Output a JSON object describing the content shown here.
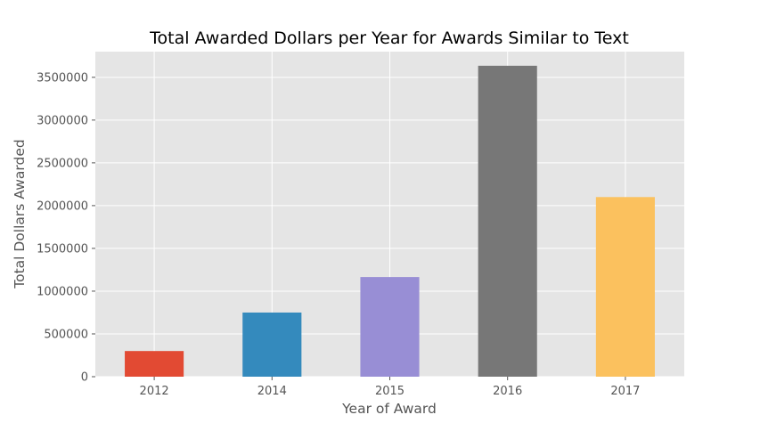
{
  "chart_data": {
    "type": "bar",
    "title": "Total Awarded Dollars per Year for Awards Similar to Text",
    "xlabel": "Year of Award",
    "ylabel": "Total Dollars Awarded",
    "categories": [
      "2012",
      "2014",
      "2015",
      "2016",
      "2017"
    ],
    "values": [
      300000,
      750000,
      1165000,
      3635000,
      2100000
    ],
    "colors": [
      "#E24A33",
      "#348ABD",
      "#988ED5",
      "#777777",
      "#FBC15E"
    ],
    "ylim": [
      0,
      3800000
    ],
    "yticks": [
      0,
      500000,
      1000000,
      1500000,
      2000000,
      2500000,
      3000000,
      3500000
    ],
    "ytick_labels": [
      "0",
      "500000",
      "1000000",
      "1500000",
      "2000000",
      "2500000",
      "3000000",
      "3500000"
    ],
    "grid": true,
    "style": "ggplot",
    "plot_background": "#E5E5E5",
    "grid_color": "#FFFFFF"
  }
}
